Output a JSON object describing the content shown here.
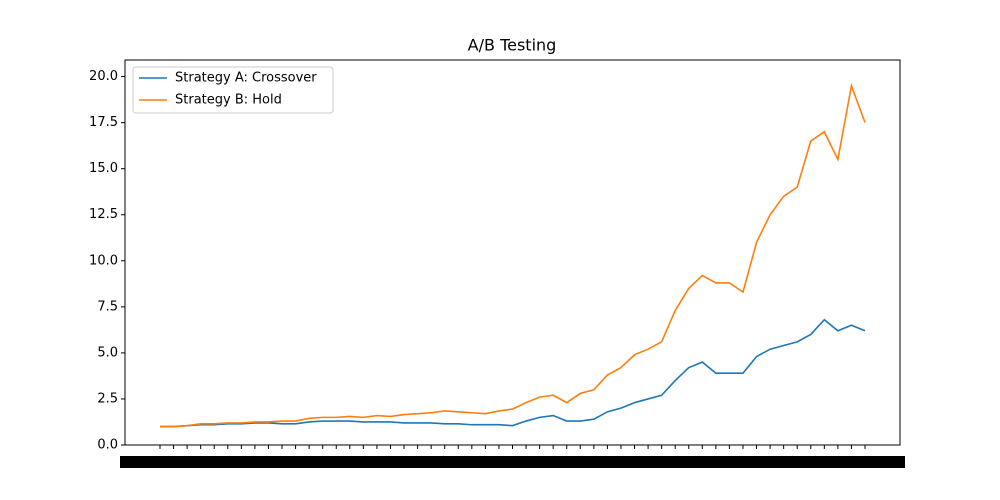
{
  "chart_data": {
    "type": "line",
    "title": "A/B Testing",
    "categories": [
      null,
      null,
      null,
      null,
      null,
      null,
      null,
      null,
      null,
      null,
      null,
      null,
      null,
      null,
      null,
      null,
      null,
      null,
      null,
      null,
      null,
      null,
      null,
      null,
      null,
      null,
      null,
      null,
      null,
      null,
      null,
      null,
      null,
      null,
      null,
      null,
      null,
      null,
      null,
      null,
      null,
      null,
      null,
      null,
      null,
      null,
      null,
      null,
      null,
      null,
      null,
      null,
      null
    ],
    "series": [
      {
        "name": "Strategy A: Crossover",
        "color": "#1f77b4",
        "values": [
          1.0,
          1.0,
          1.05,
          1.1,
          1.1,
          1.15,
          1.15,
          1.2,
          1.2,
          1.15,
          1.15,
          1.25,
          1.3,
          1.3,
          1.3,
          1.25,
          1.25,
          1.25,
          1.2,
          1.2,
          1.2,
          1.15,
          1.15,
          1.1,
          1.1,
          1.1,
          1.05,
          1.3,
          1.5,
          1.6,
          1.3,
          1.3,
          1.4,
          1.8,
          2.0,
          2.3,
          2.5,
          2.7,
          3.5,
          4.2,
          4.5,
          3.9,
          3.9,
          3.9,
          4.8,
          5.2,
          5.4,
          5.6,
          6.0,
          6.8,
          6.2,
          6.5,
          6.2
        ]
      },
      {
        "name": "Strategy B: Hold",
        "color": "#ff7f0e",
        "values": [
          1.0,
          1.0,
          1.05,
          1.15,
          1.15,
          1.2,
          1.2,
          1.25,
          1.25,
          1.3,
          1.3,
          1.45,
          1.5,
          1.5,
          1.55,
          1.5,
          1.6,
          1.55,
          1.65,
          1.7,
          1.75,
          1.85,
          1.8,
          1.75,
          1.7,
          1.85,
          1.95,
          2.3,
          2.6,
          2.7,
          2.3,
          2.8,
          3.0,
          3.8,
          4.2,
          4.9,
          5.2,
          5.6,
          7.3,
          8.5,
          9.2,
          8.8,
          8.8,
          8.3,
          11.0,
          12.5,
          13.5,
          14.0,
          16.5,
          17.0,
          15.5,
          19.5,
          17.5
        ]
      }
    ],
    "ylim": [
      0,
      20.9
    ],
    "yticks": [
      {
        "value": 0,
        "label": "0.0"
      },
      {
        "value": 2.5,
        "label": "2.5"
      },
      {
        "value": 5,
        "label": "5.0"
      },
      {
        "value": 7.5,
        "label": "7.5"
      },
      {
        "value": 10,
        "label": "10.0"
      },
      {
        "value": 12.5,
        "label": "12.5"
      },
      {
        "value": 15,
        "label": "15.0"
      },
      {
        "value": 17.5,
        "label": "17.5"
      },
      {
        "value": 20,
        "label": "20.0"
      }
    ],
    "legend": "upper left"
  }
}
